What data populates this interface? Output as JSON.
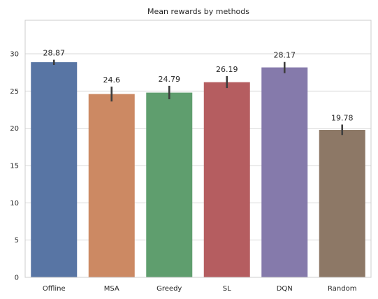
{
  "chart_data": {
    "type": "bar",
    "title": "Mean rewards by methods",
    "xlabel": "",
    "ylabel": "",
    "categories": [
      "Offline",
      "MSA",
      "Greedy",
      "SL",
      "DQN",
      "Random"
    ],
    "values": [
      28.87,
      24.6,
      24.79,
      26.19,
      28.17,
      19.78
    ],
    "value_labels": [
      "28.87",
      "24.6",
      "24.79",
      "26.19",
      "28.17",
      "19.78"
    ],
    "error_low": [
      28.5,
      23.6,
      23.9,
      25.4,
      27.4,
      19.1
    ],
    "error_high": [
      29.2,
      25.6,
      25.7,
      27.0,
      28.9,
      20.5
    ],
    "colors": [
      "#5875a4",
      "#cc8963",
      "#5f9e6e",
      "#b55d60",
      "#857aab",
      "#8d7866"
    ],
    "ylim": [
      0,
      34.5
    ],
    "yticks": [
      0,
      5,
      10,
      15,
      20,
      25,
      30
    ],
    "grid": true,
    "legend": "none"
  }
}
